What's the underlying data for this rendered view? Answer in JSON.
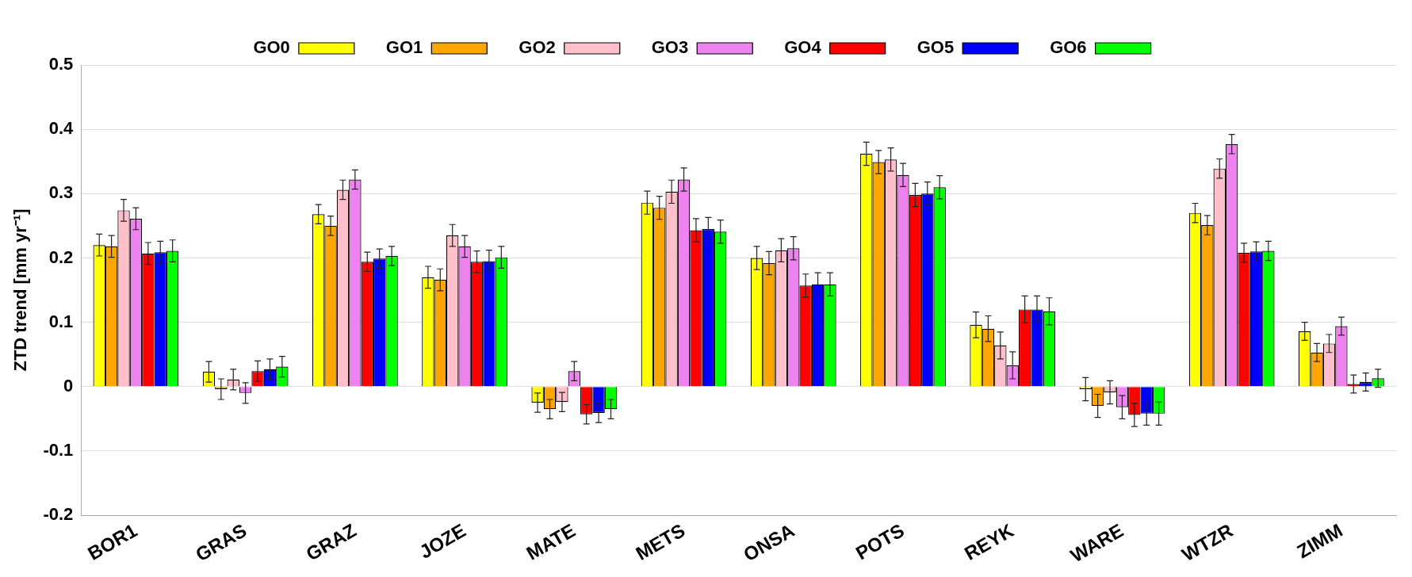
{
  "chart_data": {
    "type": "bar",
    "ylabel": "ZTD trend [mm yr⁻¹]",
    "categories": [
      "BOR1",
      "GRAS",
      "GRAZ",
      "JOZE",
      "MATE",
      "METS",
      "ONSA",
      "POTS",
      "REYK",
      "WARE",
      "WTZR",
      "ZIMM"
    ],
    "ylim": [
      -0.2,
      0.5
    ],
    "yticks": [
      -0.2,
      -0.1,
      0,
      0.1,
      0.2,
      0.3,
      0.4,
      0.5
    ],
    "grid": "y",
    "legend": "top",
    "series": [
      {
        "name": "GO0",
        "color": "#ffff00",
        "values": [
          0.22,
          0.023,
          0.268,
          0.17,
          -0.025,
          0.286,
          0.2,
          0.362,
          0.096,
          -0.004,
          0.27,
          0.086
        ],
        "errors": [
          0.017,
          0.016,
          0.015,
          0.017,
          0.015,
          0.018,
          0.018,
          0.018,
          0.02,
          0.018,
          0.015,
          0.014
        ]
      },
      {
        "name": "GO1",
        "color": "#ffa500",
        "values": [
          0.218,
          -0.004,
          0.25,
          0.166,
          -0.035,
          0.278,
          0.192,
          0.349,
          0.09,
          -0.03,
          0.251,
          0.053
        ],
        "errors": [
          0.017,
          0.016,
          0.015,
          0.017,
          0.015,
          0.018,
          0.018,
          0.018,
          0.02,
          0.018,
          0.015,
          0.014
        ]
      },
      {
        "name": "GO2",
        "color": "#ffc0cb",
        "values": [
          0.274,
          0.011,
          0.306,
          0.235,
          -0.024,
          0.303,
          0.212,
          0.353,
          0.064,
          -0.009,
          0.339,
          0.067
        ],
        "errors": [
          0.017,
          0.016,
          0.015,
          0.017,
          0.015,
          0.018,
          0.018,
          0.018,
          0.021,
          0.018,
          0.015,
          0.014
        ]
      },
      {
        "name": "GO3",
        "color": "#ee82ee",
        "values": [
          0.261,
          -0.01,
          0.322,
          0.218,
          0.024,
          0.322,
          0.215,
          0.329,
          0.033,
          -0.032,
          0.377,
          0.094
        ],
        "errors": [
          0.017,
          0.016,
          0.015,
          0.017,
          0.015,
          0.018,
          0.018,
          0.018,
          0.021,
          0.018,
          0.015,
          0.014
        ]
      },
      {
        "name": "GO4",
        "color": "#ff0000",
        "values": [
          0.207,
          0.024,
          0.194,
          0.194,
          -0.043,
          0.243,
          0.157,
          0.298,
          0.12,
          -0.044,
          0.208,
          0.004
        ],
        "errors": [
          0.017,
          0.016,
          0.015,
          0.017,
          0.015,
          0.018,
          0.018,
          0.018,
          0.021,
          0.018,
          0.015,
          0.014
        ]
      },
      {
        "name": "GO5",
        "color": "#0000ff",
        "values": [
          0.209,
          0.027,
          0.199,
          0.195,
          -0.041,
          0.245,
          0.159,
          0.3,
          0.12,
          -0.042,
          0.21,
          0.007
        ],
        "errors": [
          0.017,
          0.016,
          0.015,
          0.017,
          0.015,
          0.018,
          0.018,
          0.018,
          0.021,
          0.018,
          0.015,
          0.014
        ]
      },
      {
        "name": "GO6",
        "color": "#00ff00",
        "values": [
          0.211,
          0.031,
          0.203,
          0.201,
          -0.035,
          0.241,
          0.159,
          0.31,
          0.117,
          -0.042,
          0.211,
          0.013
        ],
        "errors": [
          0.017,
          0.016,
          0.015,
          0.017,
          0.015,
          0.018,
          0.018,
          0.018,
          0.021,
          0.018,
          0.015,
          0.014
        ]
      }
    ]
  }
}
